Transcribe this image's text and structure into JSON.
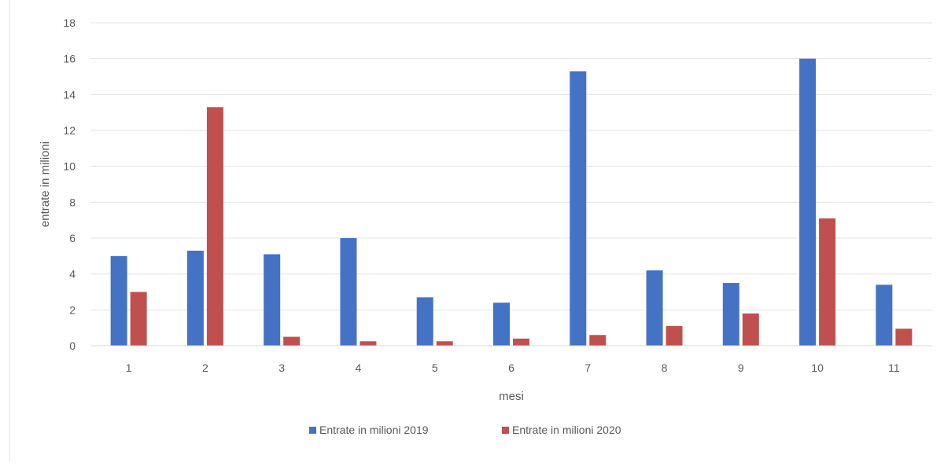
{
  "chart_data": {
    "type": "bar",
    "title": "",
    "xlabel": "mesi",
    "ylabel": "entrate in milioni",
    "categories": [
      "1",
      "2",
      "3",
      "4",
      "5",
      "6",
      "7",
      "8",
      "9",
      "10",
      "11"
    ],
    "ylim": [
      0,
      18
    ],
    "yticks": [
      "0",
      "2",
      "4",
      "6",
      "8",
      "10",
      "12",
      "14",
      "16",
      "18"
    ],
    "grid": true,
    "legend_position": "bottom",
    "series": [
      {
        "name": "Entrate in milioni 2019",
        "color": "#4472C4",
        "values": [
          5.0,
          5.3,
          5.1,
          6.0,
          2.7,
          2.4,
          15.3,
          4.2,
          3.5,
          16.0,
          3.4
        ]
      },
      {
        "name": "Entrate in milioni 2020",
        "color": "#C0504D",
        "values": [
          3.0,
          13.3,
          0.5,
          0.25,
          0.25,
          0.4,
          0.6,
          1.1,
          1.8,
          7.1,
          0.95
        ]
      }
    ]
  }
}
